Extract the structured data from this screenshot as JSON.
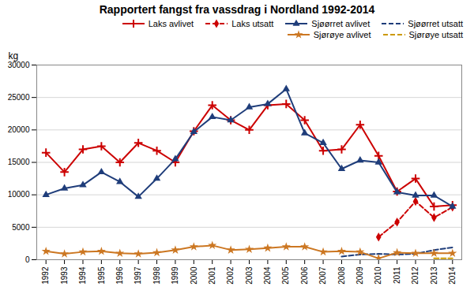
{
  "chart_data": {
    "type": "line",
    "title": "Rapportert fangst fra vassdrag i Nordland 1992-2014",
    "ylabel": "kg",
    "x": [
      1992,
      1993,
      1994,
      1995,
      1996,
      1997,
      1998,
      1999,
      2000,
      2001,
      2002,
      2003,
      2004,
      2005,
      2006,
      2007,
      2008,
      2009,
      2010,
      2011,
      2012,
      2013,
      2014
    ],
    "series": [
      {
        "name": "Laks avlivet",
        "color": "#cc0000",
        "marker": "plus",
        "line_style": "solid",
        "values": [
          16500,
          13500,
          17000,
          17500,
          15000,
          18000,
          16800,
          15000,
          19800,
          23800,
          21500,
          20000,
          23800,
          24000,
          21500,
          16800,
          17000,
          20800,
          16000,
          10500,
          12500,
          8200,
          8400
        ]
      },
      {
        "name": "Laks utsatt",
        "color": "#cc0000",
        "marker": "diamond",
        "line_style": "dashed",
        "values": [
          null,
          null,
          null,
          null,
          null,
          null,
          null,
          null,
          null,
          null,
          null,
          null,
          null,
          null,
          null,
          null,
          null,
          null,
          3500,
          5800,
          9000,
          6500,
          8100
        ]
      },
      {
        "name": "Sjøørret avlivet",
        "color": "#1f3d7a",
        "marker": "triangle",
        "line_style": "solid",
        "values": [
          10000,
          11000,
          11500,
          13500,
          12000,
          9700,
          12500,
          15500,
          19700,
          22000,
          21500,
          23500,
          24000,
          26300,
          19500,
          18000,
          14000,
          15300,
          15000,
          10400,
          9900,
          9900,
          8200
        ]
      },
      {
        "name": "Sjøørret utsatt",
        "color": "#1f3d7a",
        "marker": "none",
        "line_style": "dashed",
        "values": [
          null,
          null,
          null,
          null,
          null,
          null,
          null,
          null,
          null,
          null,
          null,
          null,
          null,
          null,
          null,
          null,
          500,
          800,
          900,
          800,
          900,
          1500,
          1900
        ]
      },
      {
        "name": "Sjørøye avlivet",
        "color": "#cc7722",
        "marker": "star",
        "line_style": "solid",
        "values": [
          1300,
          900,
          1200,
          1300,
          1000,
          900,
          1100,
          1500,
          2000,
          2200,
          1500,
          1600,
          1800,
          2000,
          2000,
          1200,
          1300,
          1200,
          200,
          1100,
          1000,
          1000,
          1000
        ]
      },
      {
        "name": "Sjørøye utsatt",
        "color": "#cc9900",
        "marker": "none",
        "line_style": "dashed",
        "values": [
          null,
          null,
          null,
          null,
          null,
          null,
          null,
          null,
          null,
          null,
          null,
          null,
          null,
          null,
          null,
          null,
          null,
          null,
          null,
          null,
          null,
          200,
          200
        ]
      }
    ],
    "xlim": [
      1991.5,
      2014.5
    ],
    "xticks": [
      1992,
      1993,
      1994,
      1995,
      1996,
      1997,
      1998,
      1999,
      2000,
      2001,
      2002,
      2003,
      2004,
      2005,
      2006,
      2007,
      2008,
      2009,
      2010,
      2011,
      2012,
      2013,
      2014
    ],
    "ylim": [
      0,
      30000
    ],
    "yticks": [
      0,
      5000,
      10000,
      15000,
      20000,
      25000,
      30000
    ],
    "grid": "y",
    "legend": "upper right"
  }
}
